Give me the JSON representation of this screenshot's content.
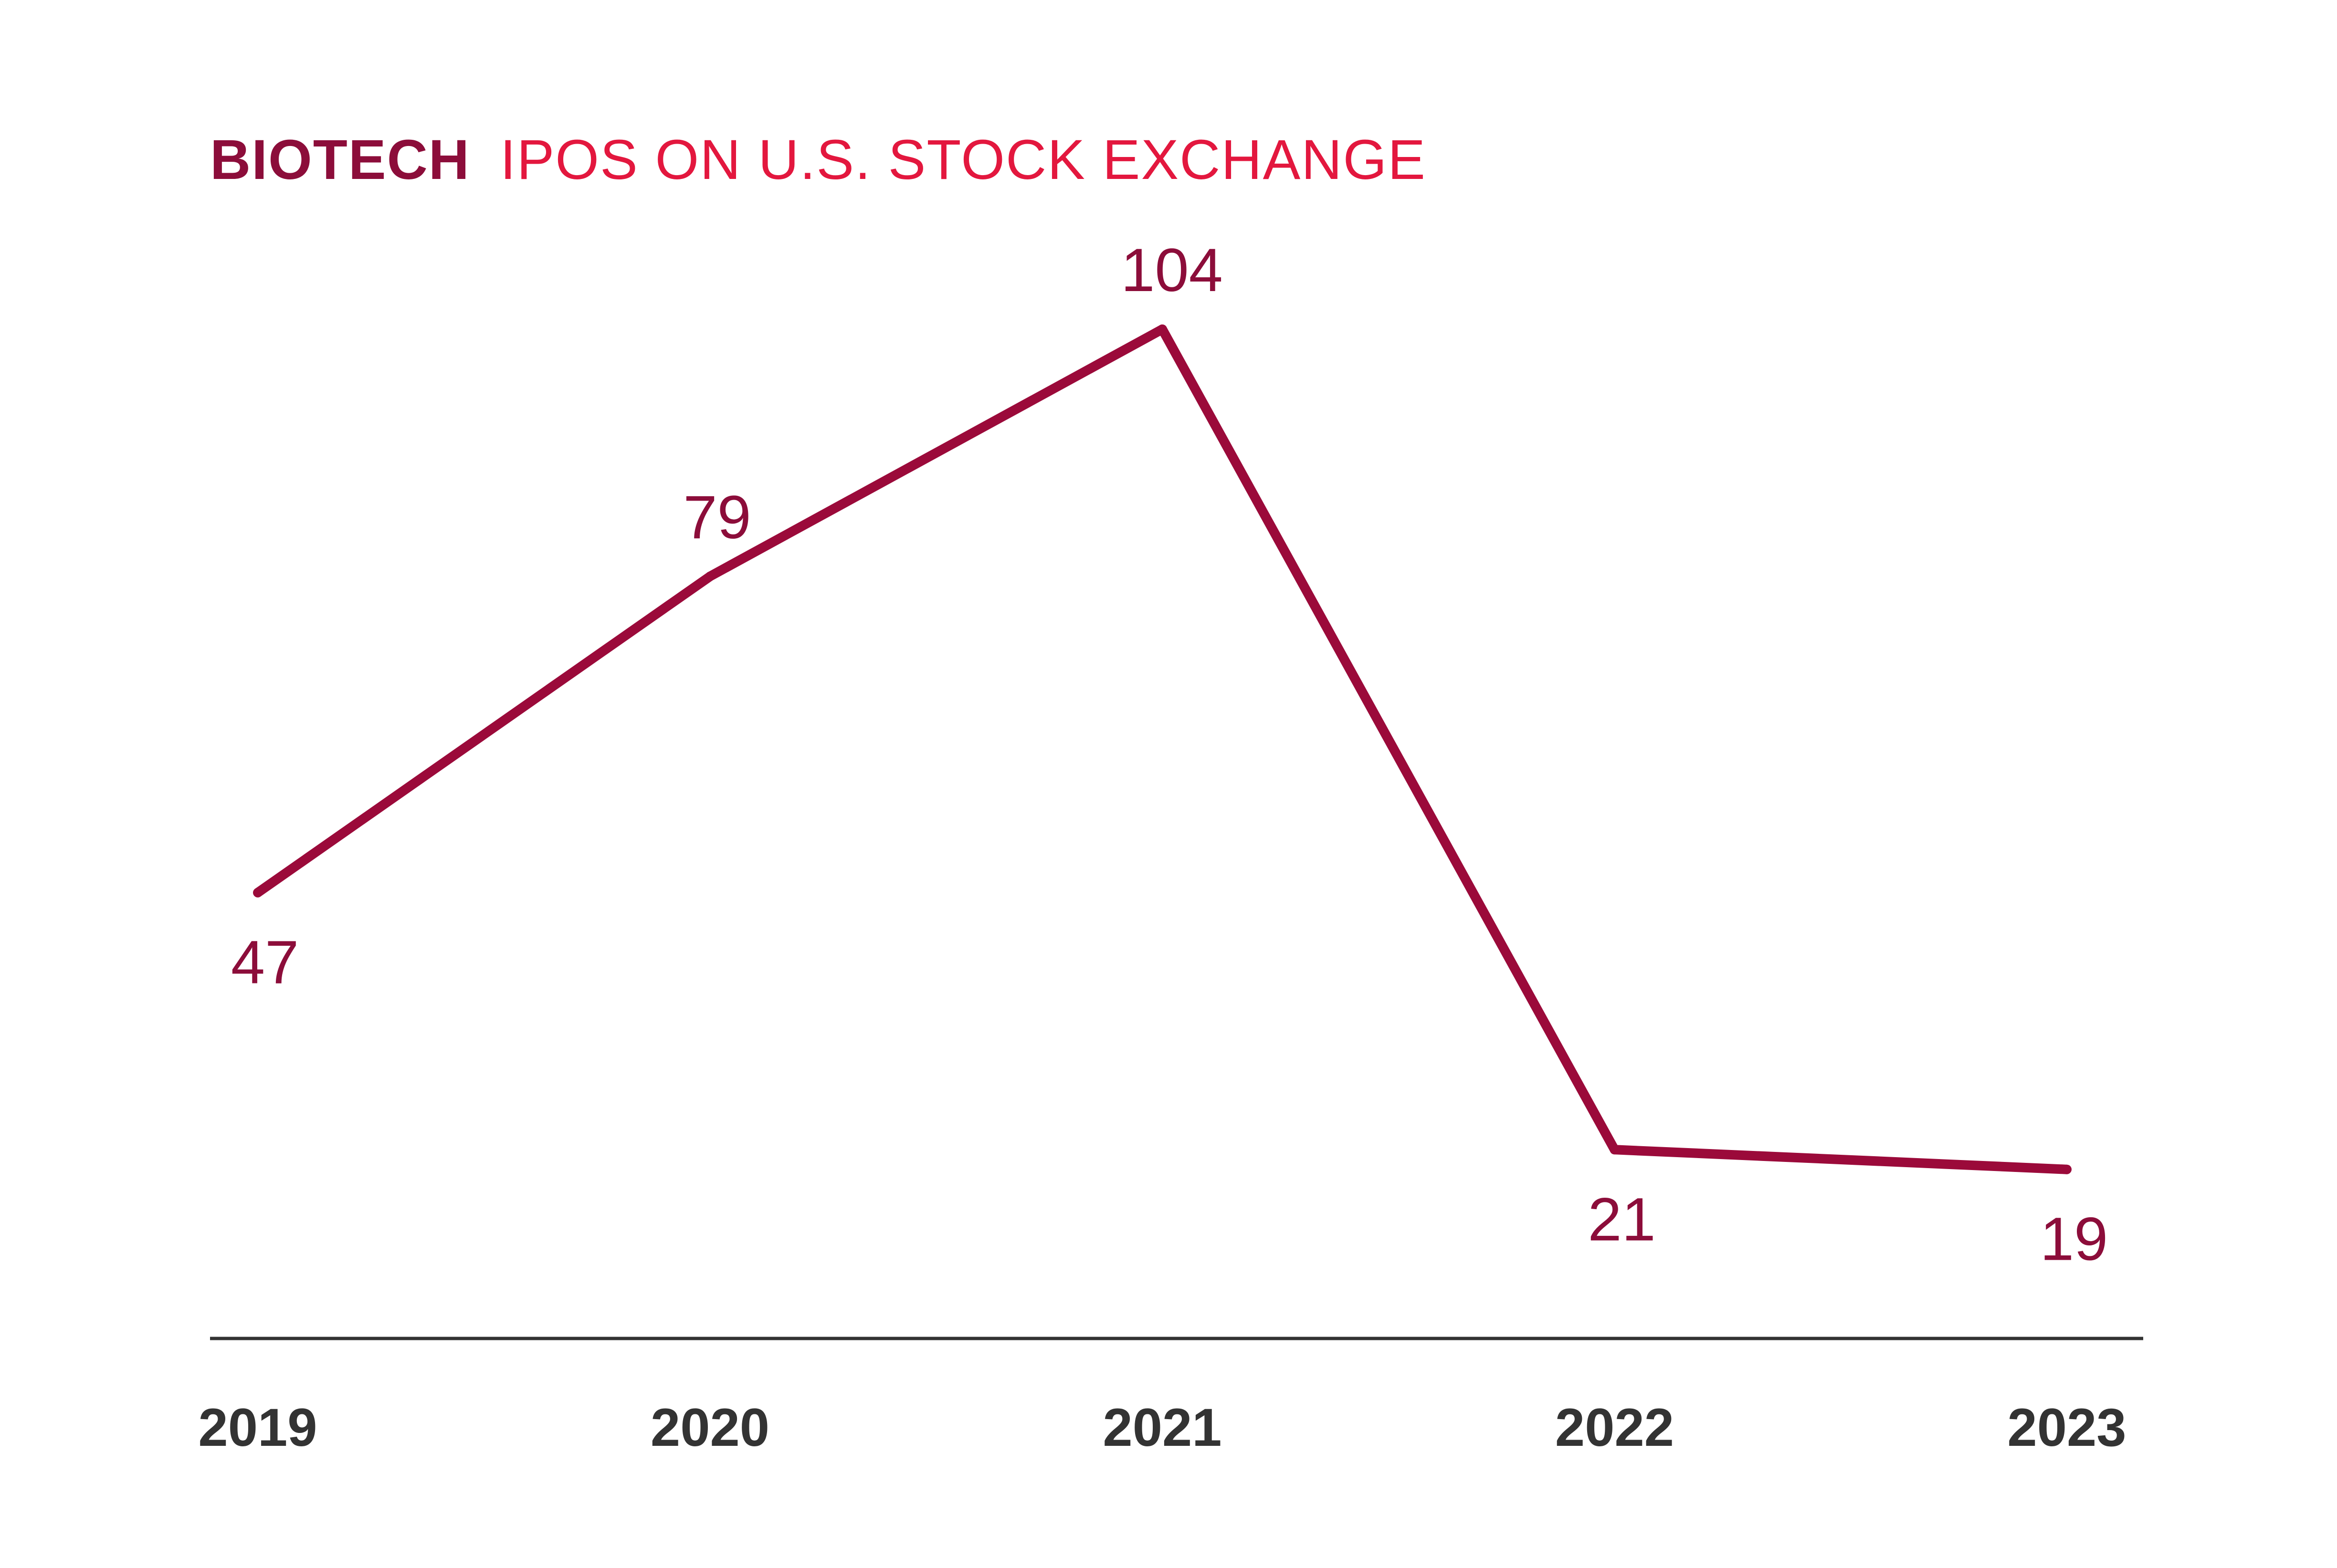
{
  "chart_data": {
    "type": "line",
    "title": "BIOTECH IPOS ON U.S. STOCK EXCHANGE",
    "title_parts": {
      "bold": "BIOTECH",
      "light": "IPOS ON U.S. STOCK EXCHANGE"
    },
    "xlabel": "",
    "ylabel": "",
    "categories": [
      "2019",
      "2020",
      "2021",
      "2022",
      "2023"
    ],
    "series": [
      {
        "values": [
          47,
          79,
          104,
          21,
          19
        ],
        "data_labels": [
          "47",
          "79",
          "104",
          "21",
          "19"
        ]
      }
    ],
    "ylim": [
      0,
      110
    ],
    "grid": false,
    "legend": "none"
  },
  "colors": {
    "line": "#9b0a3a",
    "title_bold": "#8c0d3a",
    "title_light": "#e3173e",
    "data_label": "#8c0d3a",
    "tick_label": "#333333",
    "axis": "#333333"
  }
}
